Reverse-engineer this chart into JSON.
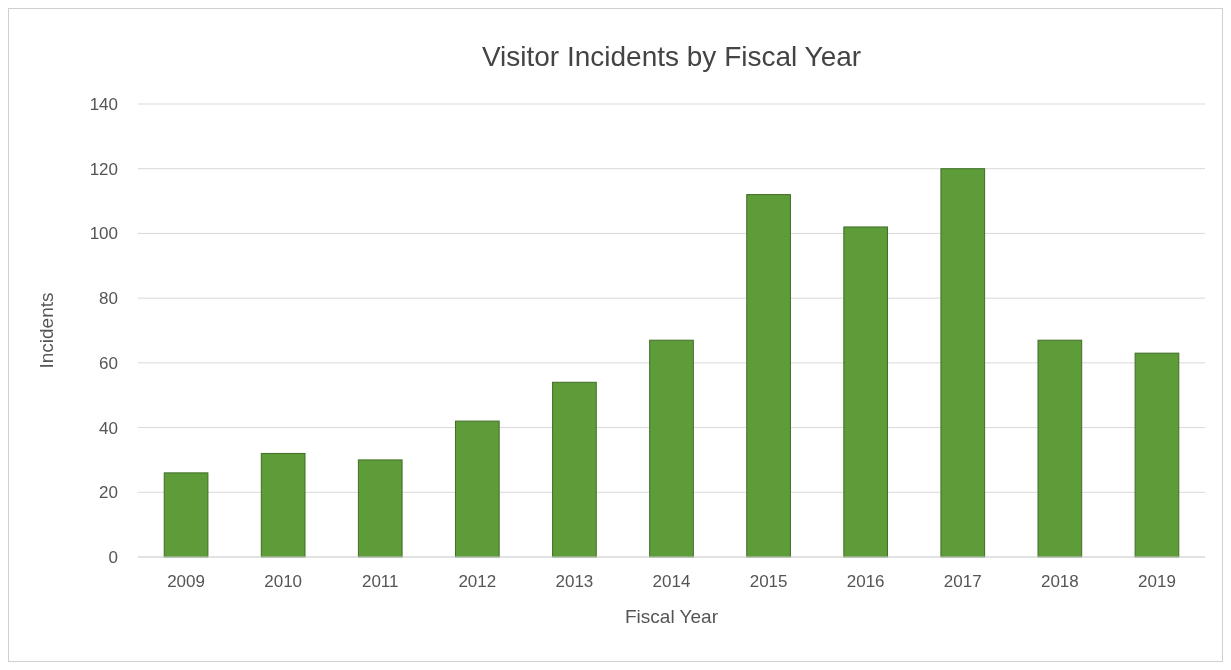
{
  "chart_data": {
    "type": "bar",
    "title": "Visitor Incidents by Fiscal Year",
    "xlabel": "Fiscal Year",
    "ylabel": "Incidents",
    "categories": [
      "2009",
      "2010",
      "2011",
      "2012",
      "2013",
      "2014",
      "2015",
      "2016",
      "2017",
      "2018",
      "2019"
    ],
    "values": [
      26,
      32,
      30,
      42,
      54,
      67,
      112,
      102,
      120,
      67,
      63
    ],
    "color": "#5e9c3a",
    "ylim": [
      0,
      140
    ],
    "yticks": [
      0,
      20,
      40,
      60,
      80,
      100,
      120,
      140
    ],
    "grid": "y"
  }
}
